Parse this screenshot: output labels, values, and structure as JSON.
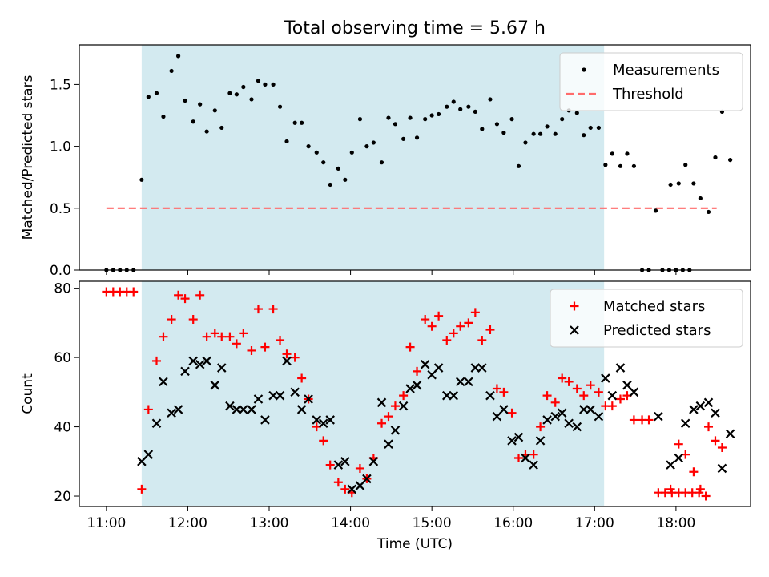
{
  "figure_title": "Total observing time = 5.67 h",
  "chart_data": [
    {
      "type": "scatter",
      "ylabel": "Matched/Predicted stars",
      "xlabel": "",
      "ylim": [
        0,
        1.82
      ],
      "xlim": [
        "10:40",
        "18:55"
      ],
      "yticks": [
        "0.0",
        "0.5",
        "1.0",
        "1.5"
      ],
      "shaded_interval": [
        "11:26",
        "17:07"
      ],
      "shaded_color": "#d3eaf0",
      "legend_position": "upper right",
      "threshold": {
        "name": "Threshold",
        "value": 0.5,
        "x_range": [
          "11:00",
          "18:30"
        ],
        "color": "#ff6b6b"
      },
      "series": [
        {
          "name": "Measurements",
          "color": "#000000",
          "marker": "dot",
          "points": [
            [
              "11:00",
              0
            ],
            [
              "11:05",
              0
            ],
            [
              "11:10",
              0
            ],
            [
              "11:15",
              0
            ],
            [
              "11:20",
              0
            ],
            [
              "11:26",
              0.73
            ],
            [
              "11:31",
              1.4
            ],
            [
              "11:37",
              1.43
            ],
            [
              "11:42",
              1.24
            ],
            [
              "11:48",
              1.61
            ],
            [
              "11:53",
              1.73
            ],
            [
              "11:58",
              1.37
            ],
            [
              "12:04",
              1.2
            ],
            [
              "12:09",
              1.34
            ],
            [
              "12:14",
              1.12
            ],
            [
              "12:20",
              1.29
            ],
            [
              "12:25",
              1.15
            ],
            [
              "12:31",
              1.43
            ],
            [
              "12:36",
              1.42
            ],
            [
              "12:41",
              1.48
            ],
            [
              "12:47",
              1.38
            ],
            [
              "12:52",
              1.53
            ],
            [
              "12:57",
              1.5
            ],
            [
              "13:03",
              1.5
            ],
            [
              "13:08",
              1.32
            ],
            [
              "13:13",
              1.04
            ],
            [
              "13:19",
              1.19
            ],
            [
              "13:24",
              1.19
            ],
            [
              "13:29",
              1.0
            ],
            [
              "13:35",
              0.95
            ],
            [
              "13:40",
              0.87
            ],
            [
              "13:45",
              0.69
            ],
            [
              "13:51",
              0.82
            ],
            [
              "13:56",
              0.73
            ],
            [
              "14:01",
              0.95
            ],
            [
              "14:07",
              1.22
            ],
            [
              "14:12",
              1.0
            ],
            [
              "14:17",
              1.03
            ],
            [
              "14:23",
              0.87
            ],
            [
              "14:28",
              1.23
            ],
            [
              "14:33",
              1.18
            ],
            [
              "14:39",
              1.06
            ],
            [
              "14:44",
              1.23
            ],
            [
              "14:49",
              1.07
            ],
            [
              "14:55",
              1.22
            ],
            [
              "15:00",
              1.25
            ],
            [
              "15:05",
              1.26
            ],
            [
              "15:11",
              1.32
            ],
            [
              "15:16",
              1.36
            ],
            [
              "15:21",
              1.3
            ],
            [
              "15:27",
              1.32
            ],
            [
              "15:32",
              1.28
            ],
            [
              "15:37",
              1.14
            ],
            [
              "15:43",
              1.38
            ],
            [
              "15:48",
              1.18
            ],
            [
              "15:53",
              1.11
            ],
            [
              "15:59",
              1.22
            ],
            [
              "16:04",
              0.84
            ],
            [
              "16:09",
              1.03
            ],
            [
              "16:15",
              1.1
            ],
            [
              "16:20",
              1.1
            ],
            [
              "16:25",
              1.16
            ],
            [
              "16:31",
              1.1
            ],
            [
              "16:36",
              1.22
            ],
            [
              "16:41",
              1.29
            ],
            [
              "16:47",
              1.27
            ],
            [
              "16:52",
              1.09
            ],
            [
              "16:57",
              1.15
            ],
            [
              "17:03",
              1.15
            ],
            [
              "17:08",
              0.85
            ],
            [
              "17:13",
              0.94
            ],
            [
              "17:19",
              0.84
            ],
            [
              "17:24",
              0.94
            ],
            [
              "17:29",
              0.84
            ],
            [
              "17:35",
              0
            ],
            [
              "17:40",
              0
            ],
            [
              "17:45",
              0.48
            ],
            [
              "17:50",
              0
            ],
            [
              "17:55",
              0
            ],
            [
              "18:00",
              0
            ],
            [
              "18:05",
              0
            ],
            [
              "18:10",
              0
            ],
            [
              "17:56",
              0.69
            ],
            [
              "18:02",
              0.7
            ],
            [
              "18:07",
              0.85
            ],
            [
              "18:13",
              0.7
            ],
            [
              "18:18",
              0.58
            ],
            [
              "18:24",
              0.47
            ],
            [
              "18:29",
              0.91
            ],
            [
              "18:34",
              1.28
            ],
            [
              "18:40",
              0.89
            ]
          ]
        }
      ]
    },
    {
      "type": "scatter",
      "ylabel": "Count",
      "xlabel": "Time (UTC)",
      "ylim": [
        17,
        82
      ],
      "xlim": [
        "10:40",
        "18:55"
      ],
      "yticks": [
        "20",
        "40",
        "60",
        "80"
      ],
      "xticks": [
        "11:00",
        "12:00",
        "13:00",
        "14:00",
        "15:00",
        "16:00",
        "17:00",
        "18:00"
      ],
      "shaded_interval": [
        "11:26",
        "17:07"
      ],
      "shaded_color": "#d3eaf0",
      "legend_position": "upper right",
      "series": [
        {
          "name": "Matched stars",
          "color": "#ff0000",
          "marker": "plus",
          "points": [
            [
              "11:00",
              79
            ],
            [
              "11:05",
              79
            ],
            [
              "11:10",
              79
            ],
            [
              "11:15",
              79
            ],
            [
              "11:20",
              79
            ],
            [
              "11:26",
              22
            ],
            [
              "11:31",
              45
            ],
            [
              "11:37",
              59
            ],
            [
              "11:42",
              66
            ],
            [
              "11:48",
              71
            ],
            [
              "11:53",
              78
            ],
            [
              "11:58",
              77
            ],
            [
              "12:04",
              71
            ],
            [
              "12:09",
              78
            ],
            [
              "12:14",
              66
            ],
            [
              "12:20",
              67
            ],
            [
              "12:25",
              66
            ],
            [
              "12:31",
              66
            ],
            [
              "12:36",
              64
            ],
            [
              "12:41",
              67
            ],
            [
              "12:47",
              62
            ],
            [
              "12:52",
              74
            ],
            [
              "12:57",
              63
            ],
            [
              "13:03",
              74
            ],
            [
              "13:08",
              65
            ],
            [
              "13:13",
              61
            ],
            [
              "13:19",
              60
            ],
            [
              "13:24",
              54
            ],
            [
              "13:29",
              48
            ],
            [
              "13:35",
              40
            ],
            [
              "13:40",
              36
            ],
            [
              "13:45",
              29
            ],
            [
              "13:51",
              24
            ],
            [
              "13:56",
              22
            ],
            [
              "14:01",
              21
            ],
            [
              "14:07",
              28
            ],
            [
              "14:12",
              25
            ],
            [
              "14:17",
              31
            ],
            [
              "14:23",
              41
            ],
            [
              "14:28",
              43
            ],
            [
              "14:33",
              46
            ],
            [
              "14:39",
              49
            ],
            [
              "14:44",
              63
            ],
            [
              "14:49",
              56
            ],
            [
              "14:55",
              71
            ],
            [
              "15:00",
              69
            ],
            [
              "15:05",
              72
            ],
            [
              "15:11",
              65
            ],
            [
              "15:16",
              67
            ],
            [
              "15:21",
              69
            ],
            [
              "15:27",
              70
            ],
            [
              "15:32",
              73
            ],
            [
              "15:37",
              65
            ],
            [
              "15:43",
              68
            ],
            [
              "15:48",
              51
            ],
            [
              "15:53",
              50
            ],
            [
              "15:59",
              44
            ],
            [
              "16:04",
              31
            ],
            [
              "16:09",
              32
            ],
            [
              "16:15",
              32
            ],
            [
              "16:20",
              40
            ],
            [
              "16:25",
              49
            ],
            [
              "16:31",
              47
            ],
            [
              "16:36",
              54
            ],
            [
              "16:41",
              53
            ],
            [
              "16:47",
              51
            ],
            [
              "16:52",
              49
            ],
            [
              "16:57",
              52
            ],
            [
              "17:03",
              50
            ],
            [
              "17:08",
              46
            ],
            [
              "17:13",
              46
            ],
            [
              "17:19",
              48
            ],
            [
              "17:24",
              49
            ],
            [
              "17:29",
              42
            ],
            [
              "17:35",
              42
            ],
            [
              "17:40",
              42
            ],
            [
              "17:47",
              21
            ],
            [
              "17:52",
              21
            ],
            [
              "17:57",
              21
            ],
            [
              "18:02",
              21
            ],
            [
              "18:07",
              21
            ],
            [
              "18:12",
              21
            ],
            [
              "18:17",
              21
            ],
            [
              "18:22",
              20
            ],
            [
              "17:56",
              22
            ],
            [
              "18:02",
              35
            ],
            [
              "18:07",
              32
            ],
            [
              "18:13",
              27
            ],
            [
              "18:18",
              22
            ],
            [
              "18:24",
              40
            ],
            [
              "18:29",
              36
            ],
            [
              "18:34",
              34
            ]
          ]
        },
        {
          "name": "Predicted stars",
          "color": "#000000",
          "marker": "x",
          "points": [
            [
              "11:26",
              30
            ],
            [
              "11:31",
              32
            ],
            [
              "11:37",
              41
            ],
            [
              "11:42",
              53
            ],
            [
              "11:48",
              44
            ],
            [
              "11:53",
              45
            ],
            [
              "11:58",
              56
            ],
            [
              "12:04",
              59
            ],
            [
              "12:09",
              58
            ],
            [
              "12:14",
              59
            ],
            [
              "12:20",
              52
            ],
            [
              "12:25",
              57
            ],
            [
              "12:31",
              46
            ],
            [
              "12:36",
              45
            ],
            [
              "12:41",
              45
            ],
            [
              "12:47",
              45
            ],
            [
              "12:52",
              48
            ],
            [
              "12:57",
              42
            ],
            [
              "13:03",
              49
            ],
            [
              "13:08",
              49
            ],
            [
              "13:13",
              59
            ],
            [
              "13:19",
              50
            ],
            [
              "13:24",
              45
            ],
            [
              "13:29",
              48
            ],
            [
              "13:35",
              42
            ],
            [
              "13:40",
              41
            ],
            [
              "13:45",
              42
            ],
            [
              "13:51",
              29
            ],
            [
              "13:56",
              30
            ],
            [
              "14:01",
              22
            ],
            [
              "14:07",
              23
            ],
            [
              "14:12",
              25
            ],
            [
              "14:17",
              30
            ],
            [
              "14:23",
              47
            ],
            [
              "14:28",
              35
            ],
            [
              "14:33",
              39
            ],
            [
              "14:39",
              46
            ],
            [
              "14:44",
              51
            ],
            [
              "14:49",
              52
            ],
            [
              "14:55",
              58
            ],
            [
              "15:00",
              55
            ],
            [
              "15:05",
              57
            ],
            [
              "15:11",
              49
            ],
            [
              "15:16",
              49
            ],
            [
              "15:21",
              53
            ],
            [
              "15:27",
              53
            ],
            [
              "15:32",
              57
            ],
            [
              "15:37",
              57
            ],
            [
              "15:43",
              49
            ],
            [
              "15:48",
              43
            ],
            [
              "15:53",
              45
            ],
            [
              "15:59",
              36
            ],
            [
              "16:04",
              37
            ],
            [
              "16:09",
              31
            ],
            [
              "16:15",
              29
            ],
            [
              "16:20",
              36
            ],
            [
              "16:25",
              42
            ],
            [
              "16:31",
              43
            ],
            [
              "16:36",
              44
            ],
            [
              "16:41",
              41
            ],
            [
              "16:47",
              40
            ],
            [
              "16:52",
              45
            ],
            [
              "16:57",
              45
            ],
            [
              "17:03",
              43
            ],
            [
              "17:08",
              54
            ],
            [
              "17:13",
              49
            ],
            [
              "17:19",
              57
            ],
            [
              "17:24",
              52
            ],
            [
              "17:29",
              50
            ],
            [
              "17:47",
              43
            ],
            [
              "17:56",
              29
            ],
            [
              "18:02",
              31
            ],
            [
              "18:07",
              41
            ],
            [
              "18:13",
              45
            ],
            [
              "18:18",
              46
            ],
            [
              "18:24",
              47
            ],
            [
              "18:29",
              44
            ],
            [
              "18:34",
              28
            ],
            [
              "18:40",
              38
            ]
          ]
        }
      ]
    }
  ]
}
